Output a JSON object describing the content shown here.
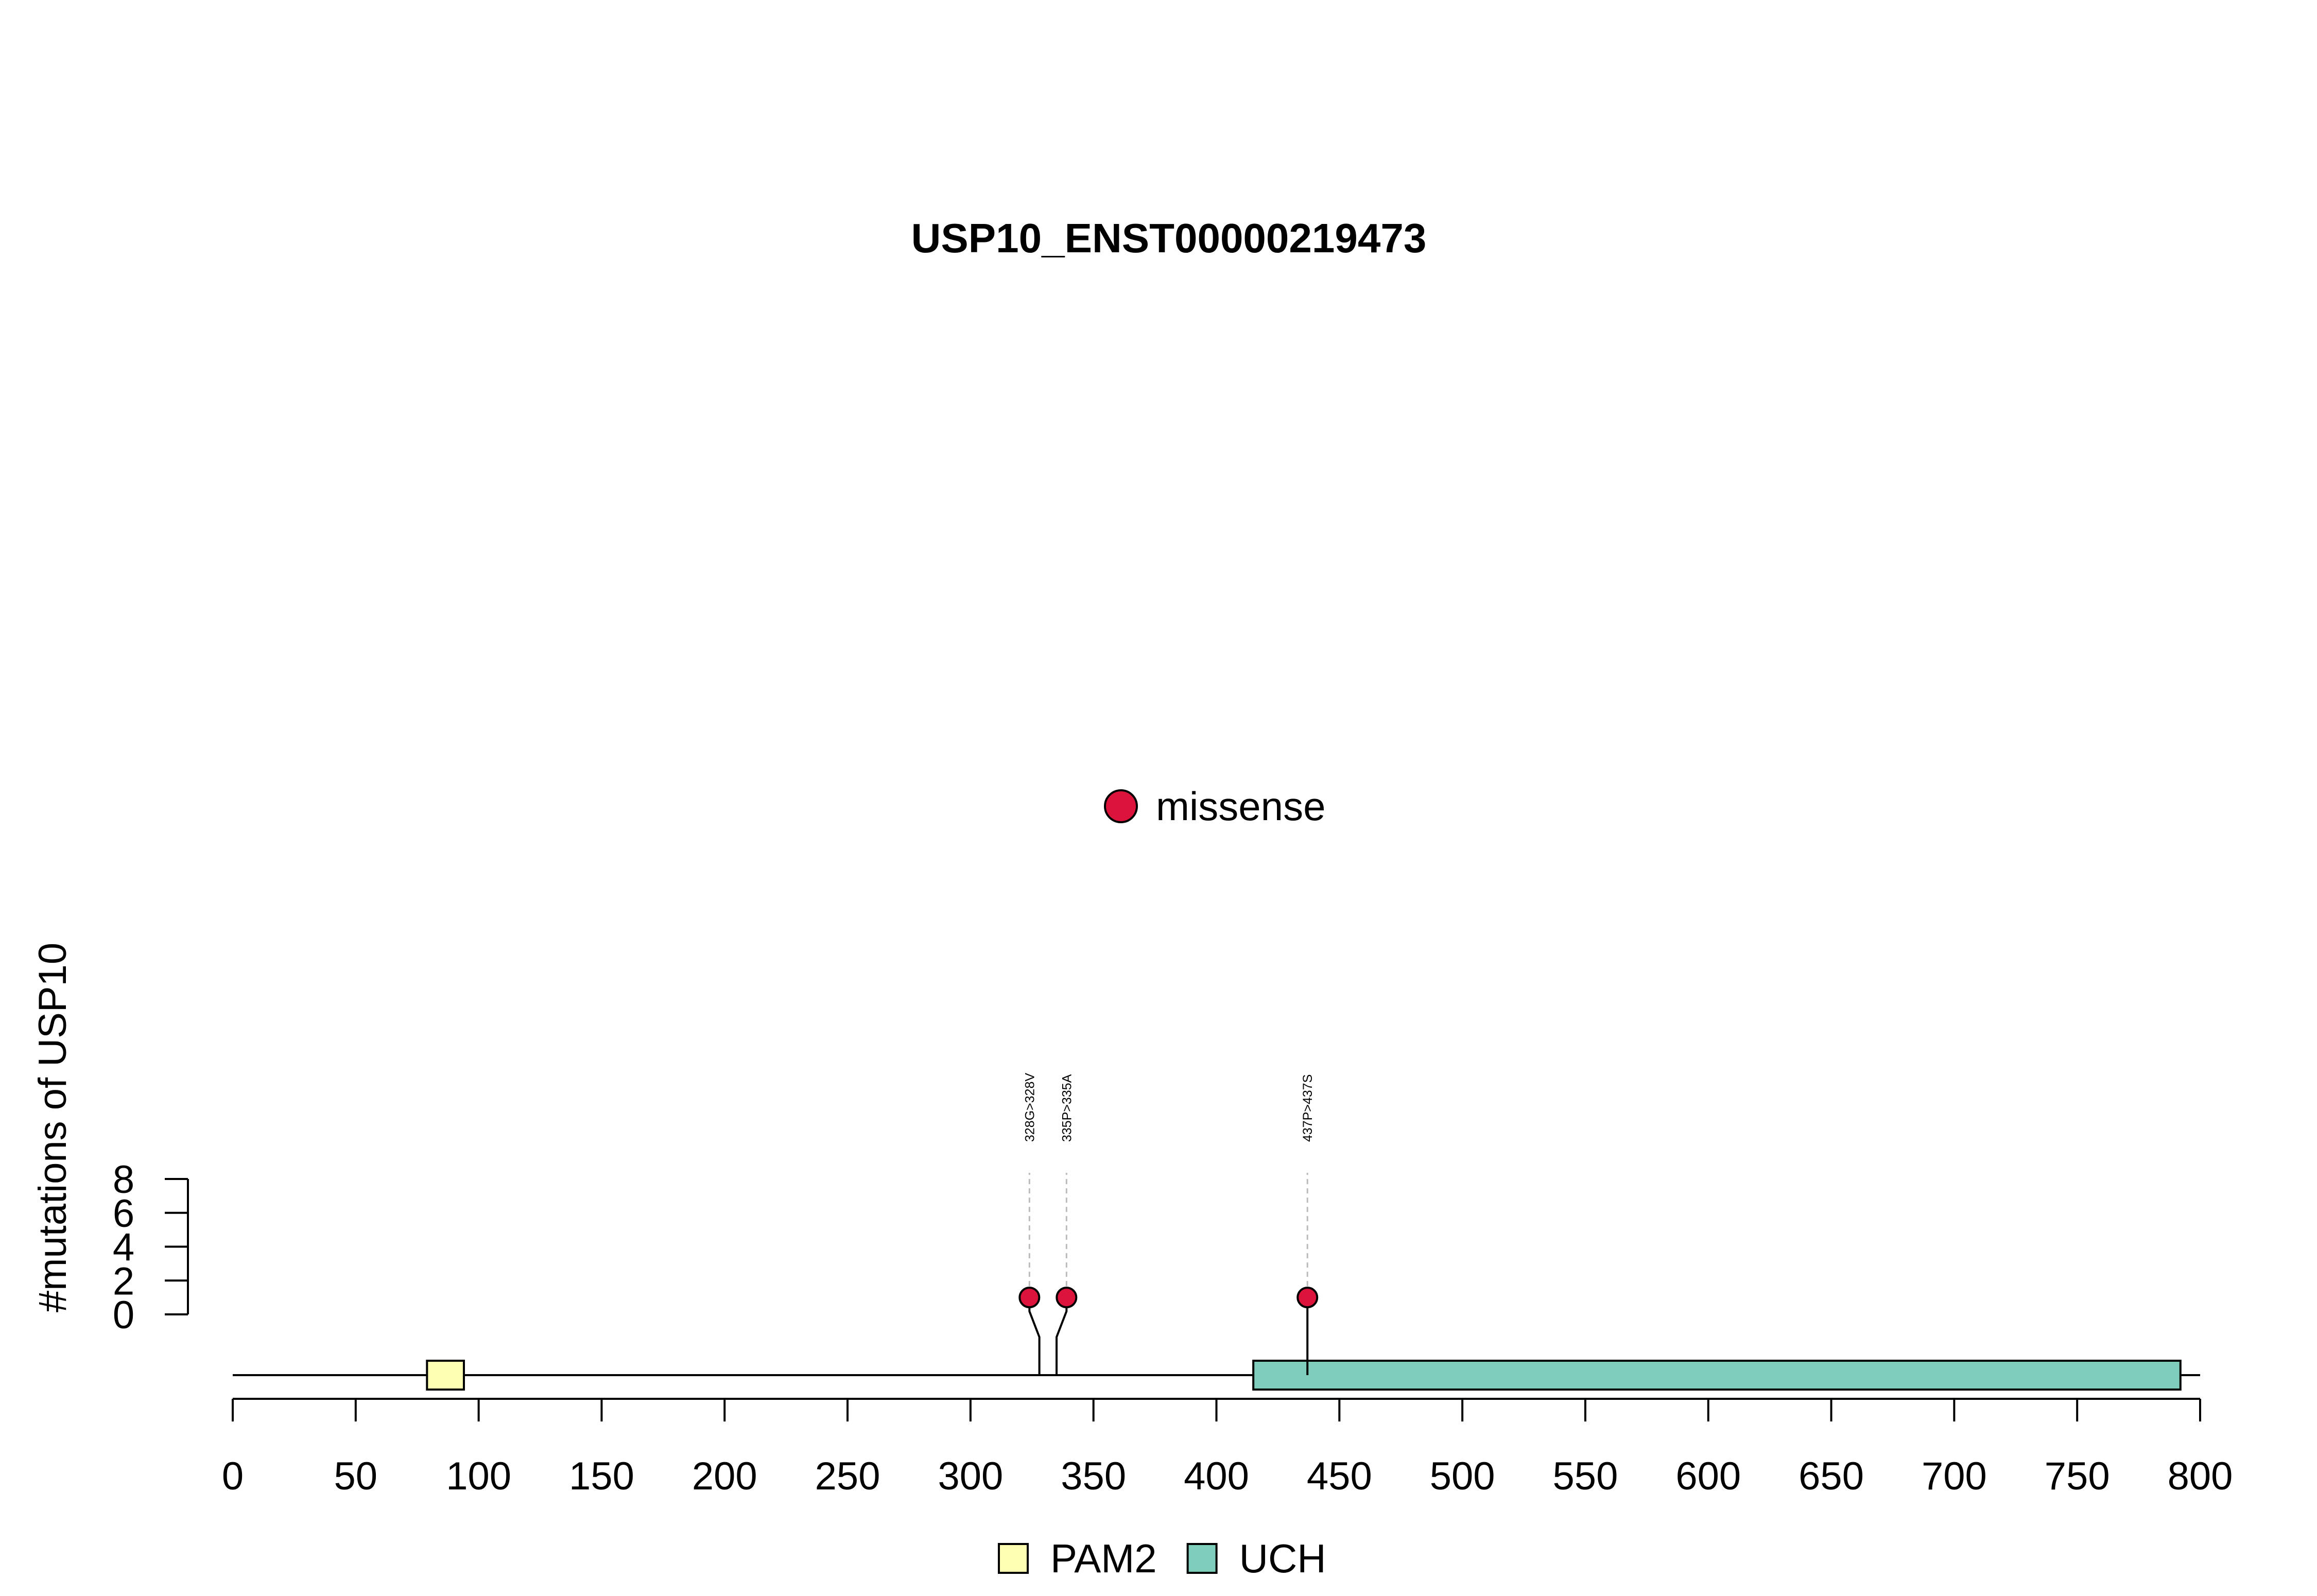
{
  "chart_data": {
    "type": "lollipop",
    "title": "USP10_ENST00000219473",
    "ylabel": "#mutations of USP10",
    "xlabel": "",
    "xlim": [
      0,
      800
    ],
    "x_ticks": [
      0,
      50,
      100,
      150,
      200,
      250,
      300,
      350,
      400,
      450,
      500,
      550,
      600,
      650,
      700,
      750,
      800
    ],
    "ylim": [
      0,
      8
    ],
    "y_ticks": [
      0,
      2,
      4,
      6,
      8
    ],
    "protein_length": 800,
    "mutation_legend": [
      {
        "label": "missense",
        "color": "#DC143C"
      }
    ],
    "mutations": [
      {
        "position": 328,
        "label": "328G>328V",
        "count": 1,
        "type": "missense",
        "color": "#DC143C"
      },
      {
        "position": 335,
        "label": "335P>335A",
        "count": 1,
        "type": "missense",
        "color": "#DC143C"
      },
      {
        "position": 437,
        "label": "437P>437S",
        "count": 1,
        "type": "missense",
        "color": "#DC143C"
      }
    ],
    "domains": [
      {
        "name": "PAM2",
        "start": 79,
        "end": 94,
        "color": "#FFFFB3"
      },
      {
        "name": "UCH",
        "start": 415,
        "end": 792,
        "color": "#7FCDBB"
      }
    ],
    "domain_legend": [
      {
        "label": "PAM2",
        "color": "#FFFFB3"
      },
      {
        "label": "UCH",
        "color": "#7FCDBB"
      }
    ]
  }
}
